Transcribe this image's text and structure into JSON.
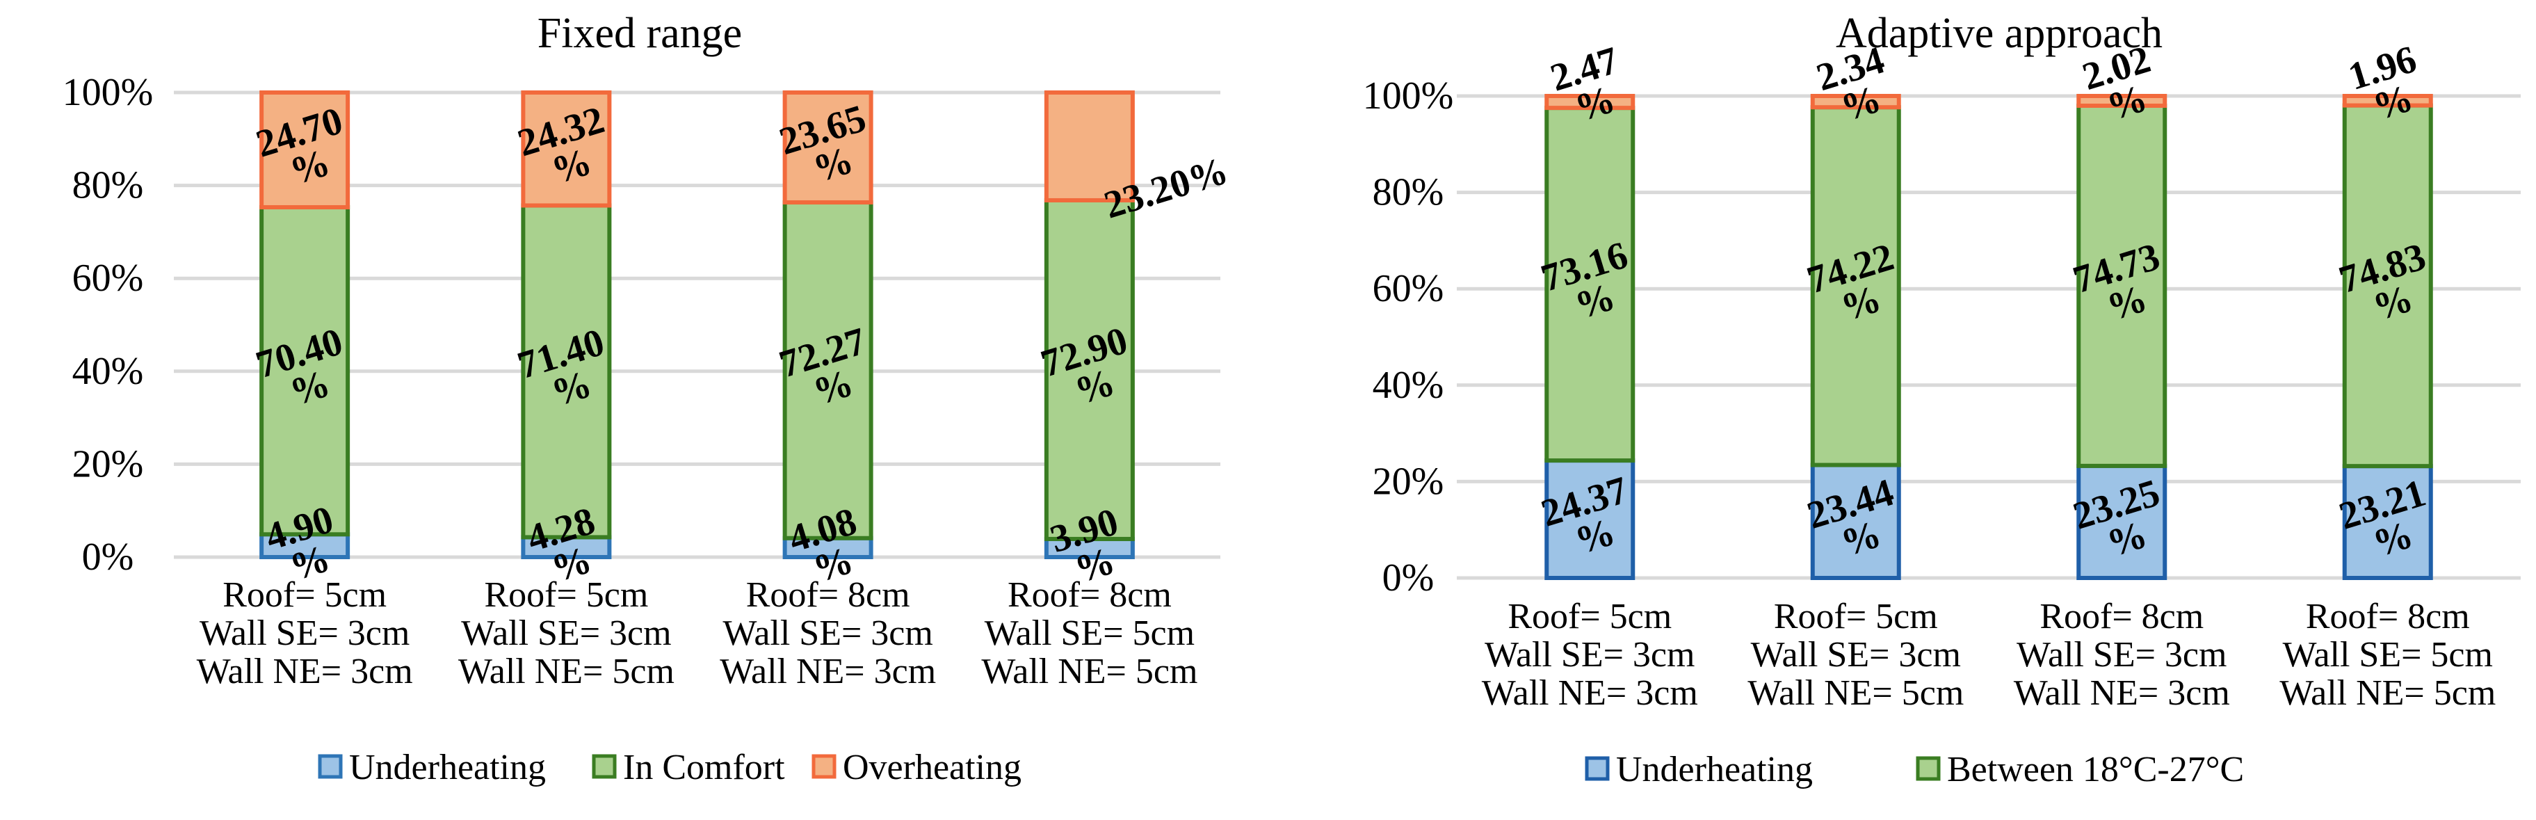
{
  "chart_data": [
    {
      "type": "bar",
      "stacked": true,
      "title": "Fixed range",
      "xlabel": "",
      "ylabel": "",
      "ylim": [
        0,
        100
      ],
      "y_ticks": [
        "0%",
        "20%",
        "40%",
        "60%",
        "80%",
        "100%"
      ],
      "categories": [
        [
          "Roof= 5cm",
          "Wall SE= 3cm",
          "Wall NE= 3cm"
        ],
        [
          "Roof= 5cm",
          "Wall SE= 3cm",
          "Wall NE= 5cm"
        ],
        [
          "Roof= 8cm",
          "Wall SE= 3cm",
          "Wall NE= 3cm"
        ],
        [
          "Roof= 8cm",
          "Wall SE= 5cm",
          "Wall NE= 5cm"
        ]
      ],
      "series": [
        {
          "name": "Underheating",
          "fill": "#9dc3e6",
          "stroke": "#2e75b6",
          "values": [
            4.9,
            4.28,
            4.08,
            3.9
          ],
          "labels": [
            [
              "4.90",
              "%"
            ],
            [
              "4.28",
              "%"
            ],
            [
              "4.08",
              "%"
            ],
            [
              "3.90",
              "%"
            ]
          ]
        },
        {
          "name": "In Comfort",
          "fill": "#a9d18e",
          "stroke": "#3a7d22",
          "values": [
            70.4,
            71.4,
            72.27,
            72.9
          ],
          "labels": [
            [
              "70.40",
              "%"
            ],
            [
              "71.40",
              "%"
            ],
            [
              "72.27",
              "%"
            ],
            [
              "72.90",
              "%"
            ]
          ]
        },
        {
          "name": "Overheating",
          "fill": "#f4b183",
          "stroke": "#f26a3c",
          "values": [
            24.7,
            24.32,
            23.65,
            23.2
          ],
          "labels": [
            [
              "24.70",
              "%"
            ],
            [
              "24.32",
              "%"
            ],
            [
              "23.65",
              "%"
            ],
            [
              "23.20%"
            ]
          ]
        }
      ],
      "legend": "bottom"
    },
    {
      "type": "bar",
      "stacked": true,
      "title": "Adaptive approach",
      "xlabel": "",
      "ylabel": "",
      "ylim": [
        0,
        100
      ],
      "y_ticks": [
        "0%",
        "20%",
        "40%",
        "60%",
        "80%",
        "100%"
      ],
      "categories": [
        [
          "Roof= 5cm",
          "Wall SE= 3cm",
          "Wall NE= 3cm"
        ],
        [
          "Roof= 5cm",
          "Wall SE= 3cm",
          "Wall NE= 5cm"
        ],
        [
          "Roof= 8cm",
          "Wall SE= 3cm",
          "Wall NE= 3cm"
        ],
        [
          "Roof= 8cm",
          "Wall SE= 5cm",
          "Wall NE= 5cm"
        ]
      ],
      "series": [
        {
          "name": "Underheating",
          "fill": "#9dc3e6",
          "stroke": "#1f5fa8",
          "values": [
            24.37,
            23.44,
            23.25,
            23.21
          ],
          "labels": [
            [
              "24.37",
              "%"
            ],
            [
              "23.44",
              "%"
            ],
            [
              "23.25",
              "%"
            ],
            [
              "23.21",
              "%"
            ]
          ]
        },
        {
          "name": "Between 18°C-27°C",
          "fill": "#a9d18e",
          "stroke": "#3a7d22",
          "values": [
            73.16,
            74.22,
            74.73,
            74.83
          ],
          "labels": [
            [
              "73.16",
              "%"
            ],
            [
              "74.22",
              "%"
            ],
            [
              "74.73",
              "%"
            ],
            [
              "74.83",
              "%"
            ]
          ]
        },
        {
          "name": "",
          "fill": "#f4b183",
          "stroke": "#f26a3c",
          "values": [
            2.47,
            2.34,
            2.02,
            1.96
          ],
          "labels": [
            [
              "2.47",
              "%"
            ],
            [
              "2.34",
              "%"
            ],
            [
              "2.02",
              "%"
            ],
            [
              "1.96",
              "%"
            ]
          ]
        }
      ],
      "legend": "bottom"
    }
  ]
}
